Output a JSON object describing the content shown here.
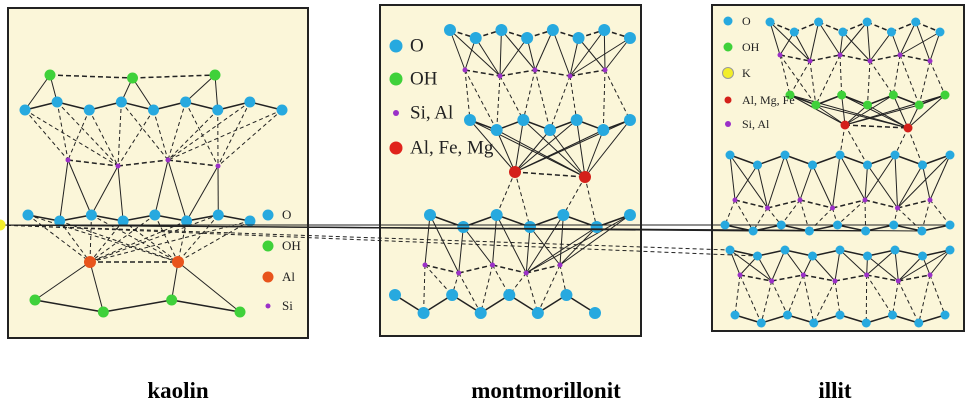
{
  "panels": [
    {
      "legend": [
        "O",
        "OH",
        "Al",
        "Si"
      ],
      "caption": "kaolin"
    },
    {
      "legend": [
        "O",
        "OH",
        "Si, Al",
        "Al, Fe, Mg"
      ],
      "caption": "montmorillonit"
    },
    {
      "legend": [
        "O",
        "OH",
        "K",
        "Al, Mg, Fe",
        "Si, Al"
      ],
      "caption": "illit"
    }
  ]
}
